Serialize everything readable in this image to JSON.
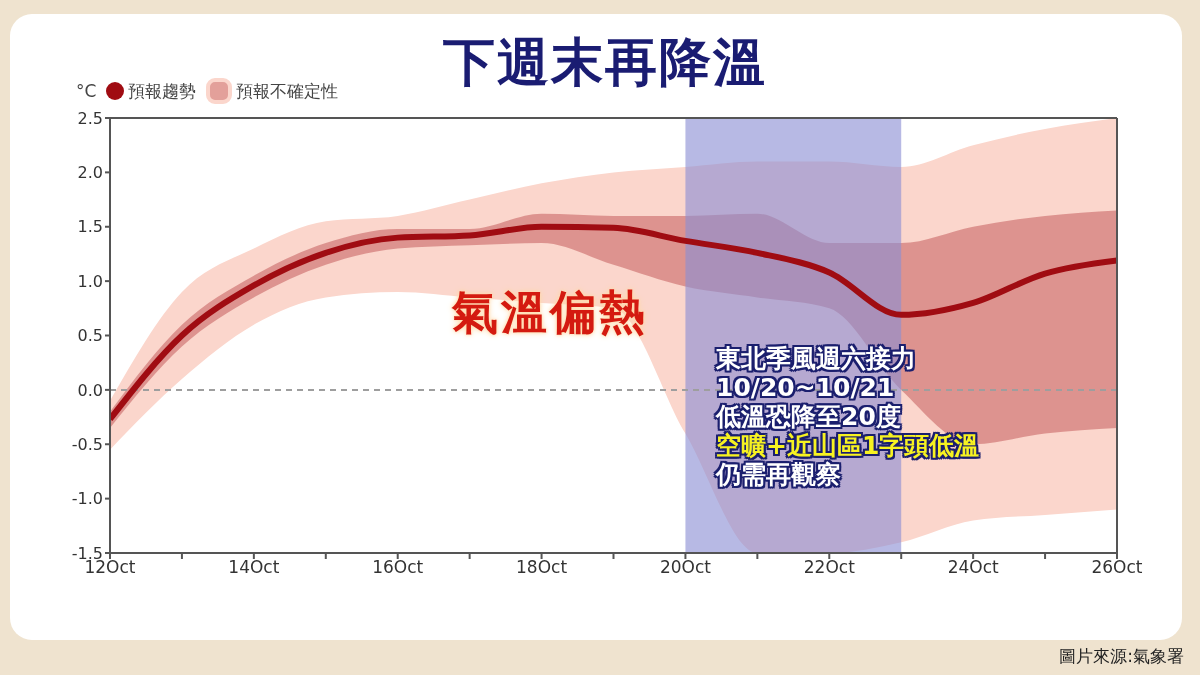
{
  "chart_data": {
    "type": "line",
    "title": "下週末再降溫",
    "ylabel": "°C",
    "x": [
      "--10-12",
      "--10-13",
      "--10-14",
      "--10-15",
      "--10-16",
      "--10-17",
      "--10-18",
      "--10-19",
      "--10-20",
      "--10-21",
      "--10-22",
      "--10-23",
      "--10-24",
      "--10-25",
      "--10-26"
    ],
    "series": [
      {
        "name": "預報趨勢",
        "color": "#a00c12",
        "values": [
          -0.27,
          0.5,
          0.96,
          1.26,
          1.4,
          1.42,
          1.5,
          1.49,
          1.37,
          1.26,
          1.08,
          0.69,
          0.8,
          1.07,
          1.19
        ],
        "lower": [
          -0.35,
          0.4,
          0.85,
          1.15,
          1.3,
          1.33,
          1.35,
          1.15,
          0.95,
          0.85,
          0.75,
          0.0,
          -0.5,
          -0.4,
          -0.35
        ],
        "upper": [
          -0.2,
          0.6,
          1.05,
          1.35,
          1.48,
          1.48,
          1.62,
          1.6,
          1.6,
          1.62,
          1.35,
          1.35,
          1.5,
          1.6,
          1.65
        ]
      },
      {
        "name": "預報不確定性",
        "color": "#fbd6cc",
        "values": [
          null,
          null,
          null,
          null,
          null,
          null,
          null,
          null,
          null,
          null,
          null,
          null,
          null,
          null,
          null
        ],
        "lower": [
          -0.55,
          0.1,
          0.6,
          0.85,
          0.9,
          0.85,
          0.8,
          0.75,
          -0.4,
          -1.5,
          -1.5,
          -1.4,
          -1.2,
          -1.15,
          -1.1
        ],
        "upper": [
          -0.1,
          0.9,
          1.3,
          1.55,
          1.6,
          1.75,
          1.9,
          2.0,
          2.05,
          2.1,
          2.1,
          2.05,
          2.25,
          2.4,
          2.5
        ]
      }
    ],
    "xlim": [
      "--10-12",
      "--10-26"
    ],
    "xticks": [
      {
        "value": "--10-12",
        "label": "12Oct"
      },
      {
        "value": "--10-13",
        "label": null
      },
      {
        "value": "--10-14",
        "label": "14Oct"
      },
      {
        "value": "--10-15",
        "label": null
      },
      {
        "value": "--10-16",
        "label": "16Oct"
      },
      {
        "value": "--10-17",
        "label": null
      },
      {
        "value": "--10-18",
        "label": "18Oct"
      },
      {
        "value": "--10-19",
        "label": null
      },
      {
        "value": "--10-20",
        "label": "20Oct"
      },
      {
        "value": "--10-21",
        "label": null
      },
      {
        "value": "--10-22",
        "label": "22Oct"
      },
      {
        "value": "--10-23",
        "label": null
      },
      {
        "value": "--10-24",
        "label": "24Oct"
      },
      {
        "value": "--10-25",
        "label": null
      },
      {
        "value": "--10-26",
        "label": "26Oct"
      }
    ],
    "ylim": [
      -1.5,
      2.5
    ],
    "yticks": [
      {
        "value": -1.5,
        "label": "-1.5"
      },
      {
        "value": -1.0,
        "label": "-1.0"
      },
      {
        "value": -0.5,
        "label": "-0.5"
      },
      {
        "value": 0,
        "label": "0.0"
      },
      {
        "value": 0.5,
        "label": "0.5"
      },
      {
        "value": 1.0,
        "label": "1.0"
      },
      {
        "value": 1.5,
        "label": "1.5"
      },
      {
        "value": 2.0,
        "label": "2.0"
      },
      {
        "value": 2.5,
        "label": "2.5"
      }
    ],
    "ref_lines": [
      {
        "axis": "y",
        "value": 0,
        "color": "#9e9e9e",
        "line_style": "dashed"
      }
    ],
    "bands": [
      {
        "axis": "x",
        "from": "--10-20",
        "to": "--10-23",
        "color": "#8a8ed4"
      }
    ],
    "legend": "top left",
    "grid": false,
    "marker": "none",
    "line_style": "solid",
    "annotations": [
      "氣溫偏熱",
      "東北季風週六接力",
      "10/20~10/21",
      "低溫恐降至20度",
      "空曠+近山區1字頭低溫",
      "仍需再觀察",
      "圖片來源:氣象署"
    ]
  }
}
